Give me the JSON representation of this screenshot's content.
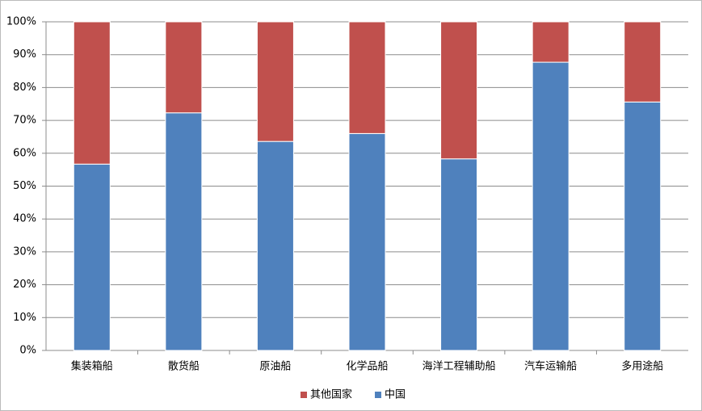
{
  "chart_data": {
    "type": "stacked_bar",
    "categories": [
      "集装箱船",
      "散货船",
      "原油船",
      "化学品船",
      "海洋工程辅助船",
      "汽车运输船",
      "多用途船"
    ],
    "series": [
      {
        "name": "中国",
        "color": "#4f81bd",
        "values": [
          56.7,
          72.3,
          63.6,
          66.0,
          58.3,
          87.7,
          75.6
        ]
      },
      {
        "name": "其他国家",
        "color": "#c0504d",
        "values": [
          43.3,
          27.7,
          36.4,
          34.0,
          41.7,
          12.3,
          24.4
        ]
      }
    ],
    "ylim": [
      0,
      100
    ],
    "yticks": [
      {
        "value": 0,
        "label": "0%"
      },
      {
        "value": 10,
        "label": "10%"
      },
      {
        "value": 20,
        "label": "20%"
      },
      {
        "value": 30,
        "label": "30%"
      },
      {
        "value": 40,
        "label": "40%"
      },
      {
        "value": 50,
        "label": "50%"
      },
      {
        "value": 60,
        "label": "60%"
      },
      {
        "value": 70,
        "label": "70%"
      },
      {
        "value": 80,
        "label": "80%"
      },
      {
        "value": 90,
        "label": "90%"
      },
      {
        "value": 100,
        "label": "100%"
      }
    ],
    "grid": true,
    "legend": "bottom"
  }
}
